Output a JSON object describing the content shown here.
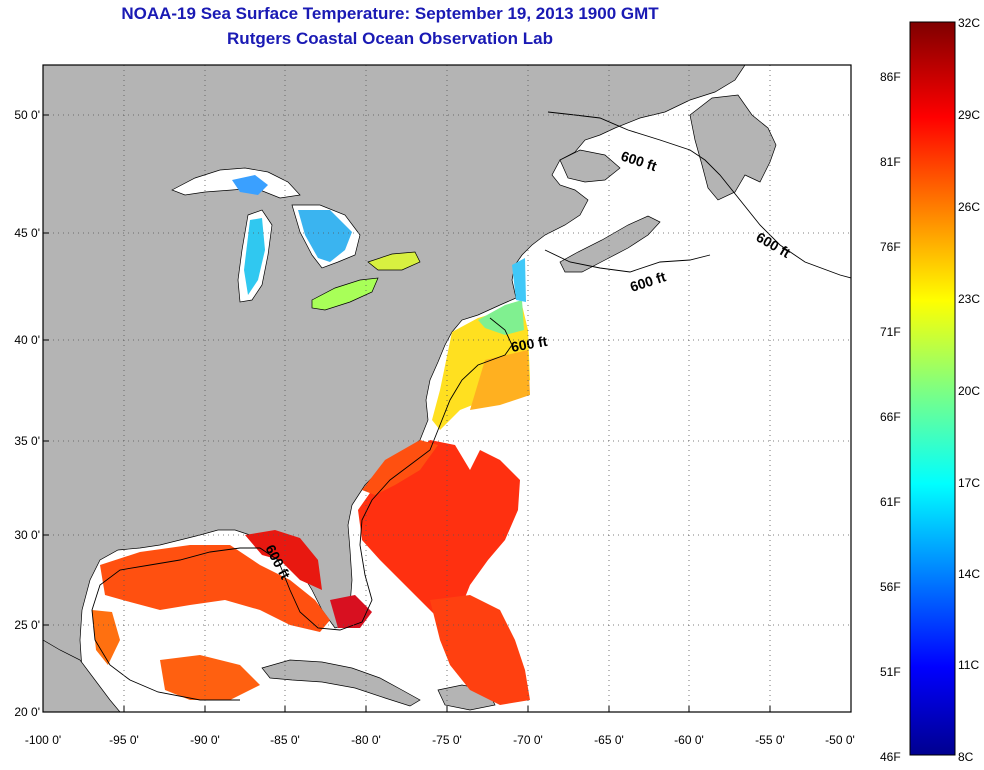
{
  "title": "NOAA-19 Sea Surface Temperature:  September 19, 2013 1900 GMT",
  "subtitle": "Rutgers Coastal Ocean Observation Lab",
  "lat_ticks": [
    "50 0'",
    "45 0'",
    "40 0'",
    "35 0'",
    "30 0'",
    "25 0'",
    "20 0'"
  ],
  "lon_ticks": [
    "-100 0'",
    "-95 0'",
    "-90 0'",
    "-85 0'",
    "-80 0'",
    "-75 0'",
    "-70 0'",
    "-65 0'",
    "-60 0'",
    "-55 0'",
    "-50 0'"
  ],
  "isobath_label": "600 ft",
  "colorbar": {
    "celsius": [
      "32C",
      "29C",
      "26C",
      "23C",
      "20C",
      "17C",
      "14C",
      "11C",
      "8C"
    ],
    "fahrenheit": [
      "86F",
      "81F",
      "76F",
      "71F",
      "66F",
      "61F",
      "56F",
      "51F",
      "46F"
    ]
  },
  "colors": {
    "land": "#b4b4b4",
    "title": "#1a1ab4",
    "colormap": [
      "#7f0000",
      "#ff0000",
      "#ff8000",
      "#ffff00",
      "#80ff80",
      "#00ffff",
      "#0080ff",
      "#0000ff",
      "#00008f"
    ]
  }
}
